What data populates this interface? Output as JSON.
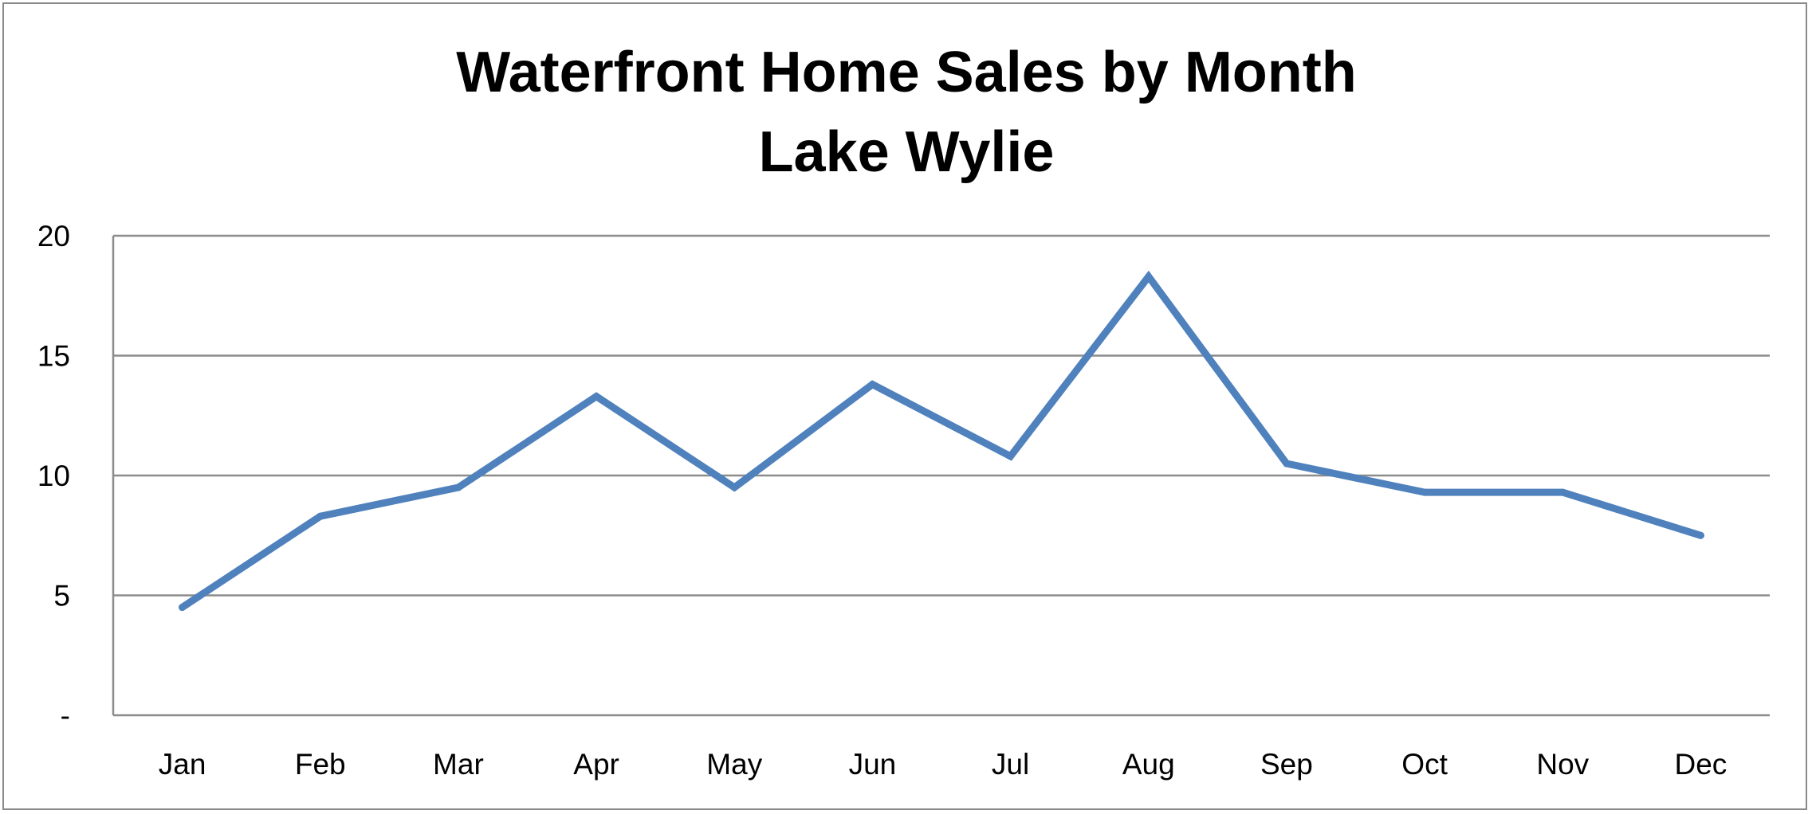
{
  "chart_data": {
    "type": "line",
    "title": "Waterfront Home Sales by Month",
    "subtitle": "Lake Wylie",
    "xlabel": "",
    "ylabel": "",
    "categories": [
      "Jan",
      "Feb",
      "Mar",
      "Apr",
      "May",
      "Jun",
      "Jul",
      "Aug",
      "Sep",
      "Oct",
      "Nov",
      "Dec"
    ],
    "series": [
      {
        "values": [
          4.5,
          8.3,
          9.5,
          13.3,
          9.5,
          13.8,
          10.8,
          18.3,
          10.5,
          9.3,
          9.3,
          7.5
        ]
      }
    ],
    "ylim": [
      0,
      20
    ],
    "yticks": [
      {
        "value": 0,
        "label": "-"
      },
      {
        "value": 5,
        "label": "5"
      },
      {
        "value": 10,
        "label": "10"
      },
      {
        "value": 15,
        "label": "15"
      },
      {
        "value": 20,
        "label": "20"
      }
    ],
    "grid": "horizontal",
    "legend": "none",
    "colors": {
      "line": "#4f81bd",
      "grid": "#8c8c8c",
      "axis": "#8c8c8c"
    }
  }
}
